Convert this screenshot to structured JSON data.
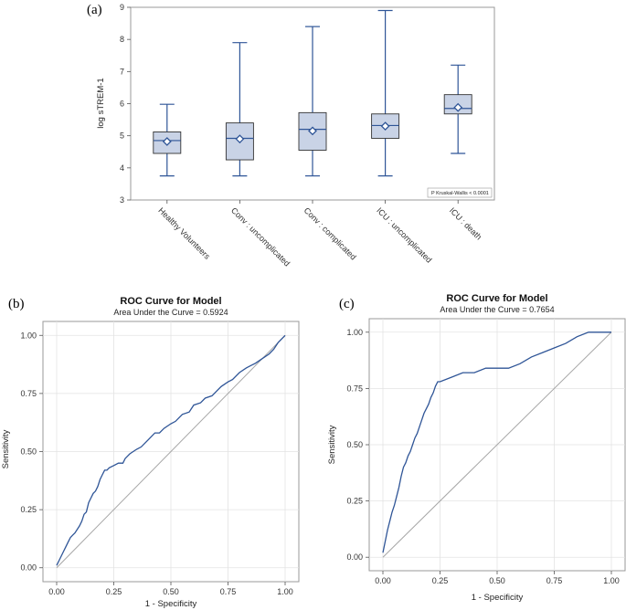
{
  "chart_data": [
    {
      "panel": "(a)",
      "type": "box",
      "ylabel": "log sTREM-1",
      "ylim": [
        3,
        9
      ],
      "yticks": [
        "3",
        "4",
        "5",
        "6",
        "7",
        "8",
        "9"
      ],
      "categories": [
        "Healthy Volunteers",
        "Conv : uncomplicated",
        "Conv : complicated",
        "ICU : uncomplicated",
        "ICU : death"
      ],
      "boxes": [
        {
          "min": 3.75,
          "q1": 4.45,
          "median": 4.85,
          "q3": 5.12,
          "max": 5.98,
          "mean": 4.82
        },
        {
          "min": 3.75,
          "q1": 4.25,
          "median": 4.92,
          "q3": 5.4,
          "max": 7.9,
          "mean": 4.9
        },
        {
          "min": 3.75,
          "q1": 4.55,
          "median": 5.2,
          "q3": 5.72,
          "max": 8.4,
          "mean": 5.15
        },
        {
          "min": 3.75,
          "q1": 4.92,
          "median": 5.32,
          "q3": 5.68,
          "max": 8.9,
          "mean": 5.3
        },
        {
          "min": 4.45,
          "q1": 5.68,
          "median": 5.85,
          "q3": 6.28,
          "max": 7.2,
          "mean": 5.88
        }
      ],
      "annotation": "P Kruskal-Wallis < 0.0001"
    },
    {
      "panel": "(b)",
      "type": "line",
      "title": "ROC Curve for Model",
      "subtitle": "Area Under the Curve = 0.5924",
      "xlabel": "1 - Specificity",
      "ylabel": "Sensitivity",
      "xlim": [
        0,
        1
      ],
      "ylim": [
        0,
        1
      ],
      "xticks": [
        "0.00",
        "0.25",
        "0.50",
        "0.75",
        "1.00"
      ],
      "yticks": [
        "0.00",
        "0.25",
        "0.50",
        "0.75",
        "1.00"
      ],
      "x": [
        0,
        0.01,
        0.02,
        0.03,
        0.04,
        0.05,
        0.06,
        0.07,
        0.08,
        0.1,
        0.11,
        0.12,
        0.13,
        0.14,
        0.15,
        0.16,
        0.17,
        0.18,
        0.19,
        0.2,
        0.21,
        0.22,
        0.23,
        0.25,
        0.27,
        0.29,
        0.3,
        0.32,
        0.35,
        0.37,
        0.4,
        0.43,
        0.45,
        0.47,
        0.5,
        0.52,
        0.55,
        0.58,
        0.6,
        0.63,
        0.65,
        0.68,
        0.7,
        0.72,
        0.75,
        0.77,
        0.8,
        0.83,
        0.85,
        0.87,
        0.9,
        0.93,
        0.95,
        0.97,
        1.0
      ],
      "y": [
        0.01,
        0.03,
        0.05,
        0.07,
        0.09,
        0.11,
        0.13,
        0.14,
        0.15,
        0.18,
        0.2,
        0.23,
        0.24,
        0.28,
        0.3,
        0.32,
        0.33,
        0.35,
        0.38,
        0.4,
        0.42,
        0.42,
        0.43,
        0.44,
        0.45,
        0.45,
        0.47,
        0.49,
        0.51,
        0.52,
        0.55,
        0.58,
        0.58,
        0.6,
        0.62,
        0.63,
        0.66,
        0.67,
        0.7,
        0.71,
        0.73,
        0.74,
        0.76,
        0.78,
        0.8,
        0.81,
        0.84,
        0.86,
        0.87,
        0.88,
        0.9,
        0.92,
        0.94,
        0.97,
        1.0
      ],
      "reference_line": [
        [
          0,
          0
        ],
        [
          1,
          1
        ]
      ]
    },
    {
      "panel": "(c)",
      "type": "line",
      "title": "ROC Curve for Model",
      "subtitle": "Area Under the Curve = 0.7654",
      "xlabel": "1 - Specificity",
      "ylabel": "Sensitivity",
      "xlim": [
        0,
        1
      ],
      "ylim": [
        0,
        1
      ],
      "xticks": [
        "0.00",
        "0.25",
        "0.50",
        "0.75",
        "1.00"
      ],
      "yticks": [
        "0.00",
        "0.25",
        "0.50",
        "0.75",
        "1.00"
      ],
      "x": [
        0,
        0.01,
        0.02,
        0.03,
        0.04,
        0.05,
        0.06,
        0.07,
        0.08,
        0.09,
        0.1,
        0.11,
        0.12,
        0.13,
        0.14,
        0.15,
        0.16,
        0.17,
        0.18,
        0.19,
        0.2,
        0.21,
        0.22,
        0.23,
        0.24,
        0.25,
        0.3,
        0.35,
        0.4,
        0.45,
        0.5,
        0.55,
        0.6,
        0.65,
        0.7,
        0.75,
        0.8,
        0.85,
        0.9,
        0.95,
        1.0
      ],
      "y": [
        0.02,
        0.07,
        0.12,
        0.16,
        0.2,
        0.23,
        0.27,
        0.31,
        0.36,
        0.4,
        0.42,
        0.45,
        0.47,
        0.5,
        0.53,
        0.55,
        0.58,
        0.61,
        0.64,
        0.66,
        0.68,
        0.71,
        0.73,
        0.76,
        0.78,
        0.78,
        0.8,
        0.82,
        0.82,
        0.84,
        0.84,
        0.84,
        0.86,
        0.89,
        0.91,
        0.93,
        0.95,
        0.98,
        1.0,
        1.0,
        1.0
      ],
      "reference_line": [
        [
          0,
          0
        ],
        [
          1,
          1
        ]
      ]
    }
  ],
  "colors": {
    "series": "#2f5597",
    "box_fill": "#c9d3e6",
    "grid": "#e3e3e3",
    "frame": "#9a9a9a",
    "reference": "#a6a6a6"
  }
}
